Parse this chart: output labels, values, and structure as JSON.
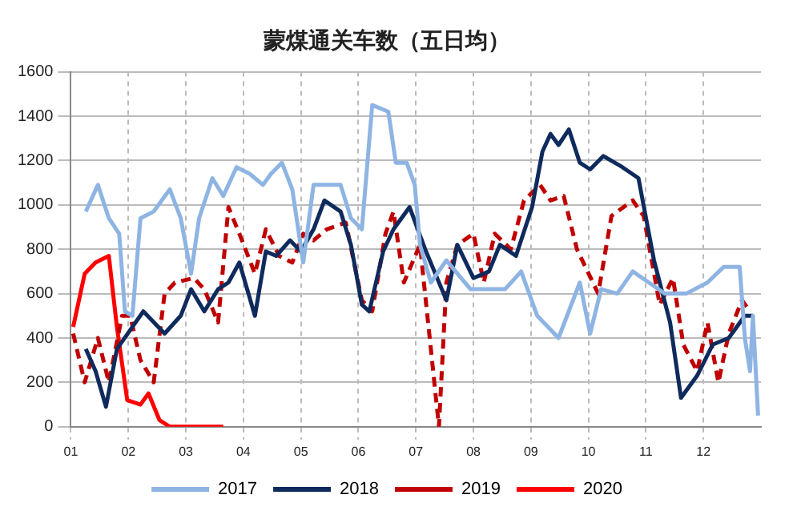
{
  "chart_data": {
    "type": "line",
    "title": "蒙煤通关车数（五日均）",
    "legend": "bottom",
    "grid": true,
    "marker": "none",
    "xlim": [
      1,
      13
    ],
    "xticks": [
      {
        "value": 1,
        "label": "01"
      },
      {
        "value": 2,
        "label": "02"
      },
      {
        "value": 3,
        "label": "03"
      },
      {
        "value": 4,
        "label": "04"
      },
      {
        "value": 5,
        "label": "05"
      },
      {
        "value": 6,
        "label": "06"
      },
      {
        "value": 7,
        "label": "07"
      },
      {
        "value": 8,
        "label": "08"
      },
      {
        "value": 9,
        "label": "09"
      },
      {
        "value": 10,
        "label": "10"
      },
      {
        "value": 11,
        "label": "11"
      },
      {
        "value": 12,
        "label": "12"
      }
    ],
    "ylim": [
      0,
      1600
    ],
    "yticks": [
      0,
      200,
      400,
      600,
      800,
      1000,
      1200,
      1400,
      1600
    ],
    "series": [
      {
        "name": "2017",
        "color": "#8eb4e3",
        "line_style": "solid",
        "x": [
          1.26,
          1.47,
          1.66,
          1.84,
          1.94,
          2.07,
          2.21,
          2.44,
          2.72,
          2.91,
          3.09,
          3.23,
          3.46,
          3.65,
          3.88,
          4.11,
          4.34,
          4.48,
          4.67,
          4.85,
          5.04,
          5.22,
          5.45,
          5.69,
          5.87,
          6.06,
          6.24,
          6.52,
          6.65,
          6.84,
          6.98,
          7.07,
          7.26,
          7.53,
          7.95,
          8.18,
          8.55,
          8.83,
          9.11,
          9.48,
          9.85,
          10.03,
          10.22,
          10.5,
          10.77,
          11.05,
          11.33,
          11.7,
          12.07,
          12.35,
          12.63,
          12.72,
          12.81,
          12.86,
          12.95
        ],
        "values": [
          970,
          1090,
          940,
          870,
          520,
          500,
          940,
          970,
          1070,
          940,
          690,
          940,
          1120,
          1040,
          1170,
          1140,
          1090,
          1140,
          1190,
          1070,
          740,
          1090,
          1090,
          1090,
          940,
          890,
          1450,
          1420,
          1190,
          1190,
          1090,
          820,
          650,
          750,
          620,
          620,
          620,
          700,
          500,
          400,
          650,
          420,
          620,
          600,
          700,
          650,
          600,
          600,
          650,
          720,
          720,
          400,
          250,
          500,
          50
        ]
      },
      {
        "name": "2018",
        "color": "#0f2a5c",
        "line_style": "solid",
        "x": [
          1.26,
          1.43,
          1.61,
          1.8,
          2.07,
          2.26,
          2.63,
          2.91,
          3.09,
          3.32,
          3.56,
          3.74,
          3.93,
          4.2,
          4.39,
          4.57,
          4.81,
          5.0,
          5.22,
          5.41,
          5.69,
          5.87,
          6.06,
          6.19,
          6.43,
          6.61,
          6.89,
          7.16,
          7.53,
          7.72,
          8.0,
          8.27,
          8.46,
          8.74,
          9.02,
          9.2,
          9.34,
          9.48,
          9.66,
          9.85,
          10.03,
          10.26,
          10.59,
          10.87,
          11.14,
          11.42,
          11.61,
          11.89,
          12.16,
          12.44,
          12.72,
          12.86
        ],
        "values": [
          350,
          250,
          90,
          350,
          450,
          520,
          420,
          500,
          620,
          520,
          620,
          650,
          740,
          500,
          790,
          770,
          840,
          790,
          890,
          1020,
          970,
          820,
          550,
          520,
          790,
          890,
          990,
          800,
          570,
          820,
          670,
          700,
          820,
          770,
          990,
          1240,
          1320,
          1270,
          1340,
          1190,
          1160,
          1220,
          1170,
          1120,
          750,
          470,
          130,
          230,
          370,
          400,
          500,
          500
        ]
      },
      {
        "name": "2019",
        "color": "#c00000",
        "line_style": "dashed",
        "x": [
          1.04,
          1.24,
          1.47,
          1.66,
          1.89,
          2.03,
          2.21,
          2.44,
          2.63,
          2.81,
          3.14,
          3.32,
          3.56,
          3.74,
          3.93,
          4.2,
          4.39,
          4.62,
          4.85,
          5.04,
          5.22,
          5.45,
          5.78,
          6.06,
          6.24,
          6.47,
          6.61,
          6.79,
          7.07,
          7.26,
          7.4,
          7.53,
          7.72,
          8.0,
          8.18,
          8.37,
          8.65,
          8.88,
          9.16,
          9.34,
          9.57,
          9.8,
          10.17,
          10.4,
          10.77,
          10.96,
          11.24,
          11.47,
          11.65,
          11.89,
          12.07,
          12.26,
          12.44,
          12.67,
          12.81
        ],
        "values": [
          420,
          200,
          400,
          200,
          500,
          500,
          300,
          200,
          600,
          650,
          670,
          620,
          470,
          990,
          870,
          690,
          890,
          770,
          740,
          870,
          840,
          890,
          920,
          570,
          520,
          870,
          970,
          650,
          820,
          350,
          0,
          650,
          820,
          870,
          650,
          870,
          800,
          1020,
          1090,
          1020,
          1040,
          800,
          600,
          950,
          1020,
          950,
          550,
          670,
          370,
          250,
          470,
          200,
          420,
          570,
          520
        ]
      },
      {
        "name": "2020",
        "color": "#ff0000",
        "line_style": "solid",
        "x": [
          1.04,
          1.24,
          1.43,
          1.66,
          1.8,
          1.98,
          2.21,
          2.35,
          2.54,
          2.72,
          3.65
        ],
        "values": [
          450,
          690,
          740,
          770,
          450,
          120,
          100,
          150,
          30,
          0,
          0
        ]
      }
    ]
  }
}
